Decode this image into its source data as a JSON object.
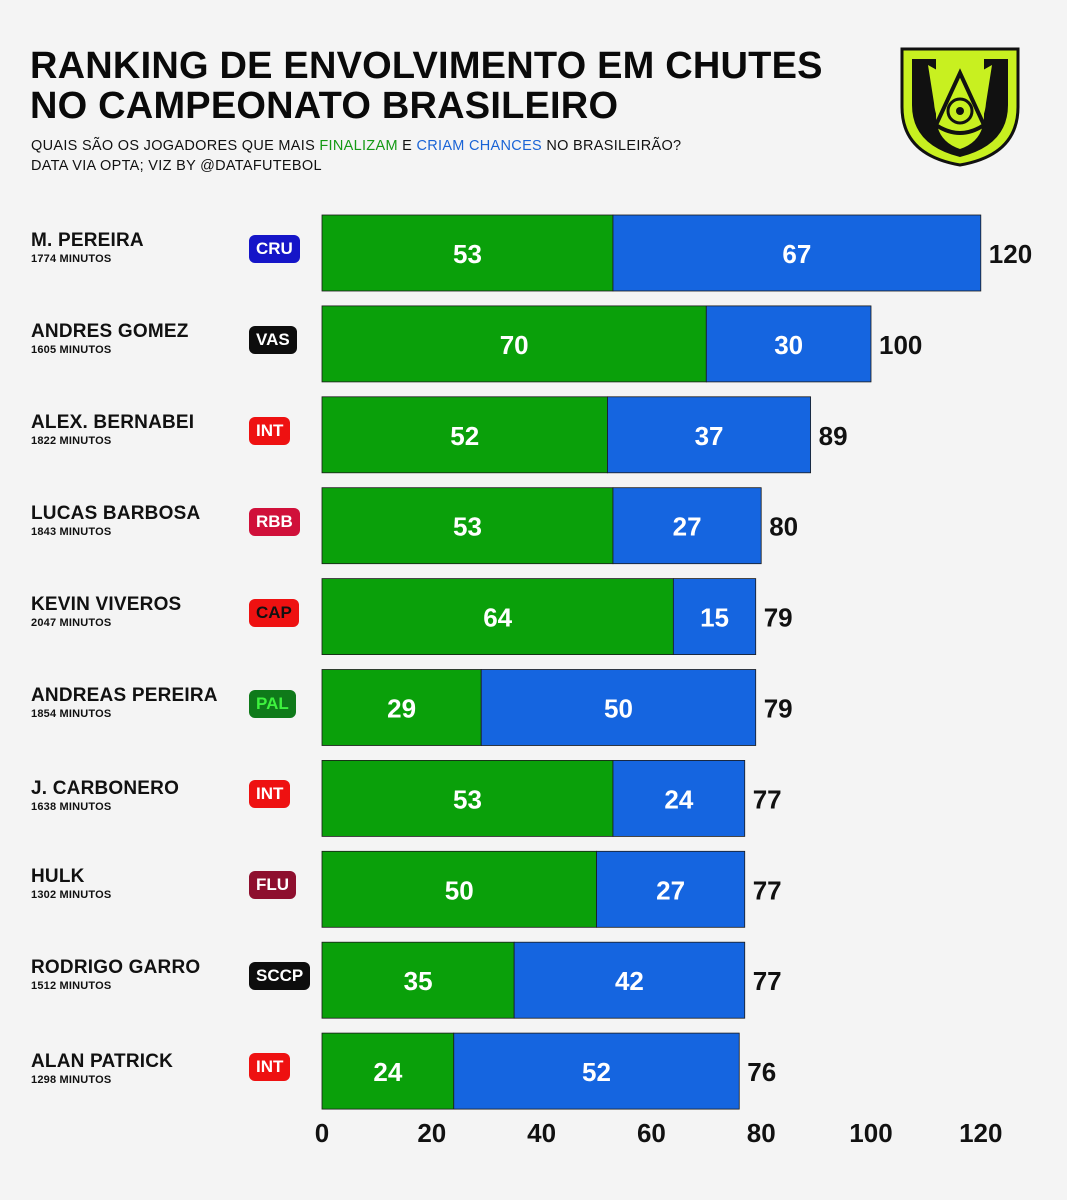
{
  "header": {
    "title_line1": "RANKING DE ENVOLVIMENTO EM CHUTES",
    "title_line2": "NO CAMPEONATO BRASILEIRO",
    "subtitle_prefix": "QUAIS SÃO OS JOGADORES QUE MAIS ",
    "subtitle_green": "FINALIZAM",
    "subtitle_mid": " E ",
    "subtitle_blue": "CRIAM CHANCES",
    "subtitle_suffix": " NO BRASILEIRÃO?",
    "credit": "DATA VIA OPTA; VIZ BY @DATAFUTEBOL"
  },
  "colors": {
    "shots": "#0aa00a",
    "chances": "#1565e0",
    "logo_lime": "#c8f020",
    "logo_dark": "#111111"
  },
  "logo": {
    "icon": "brasileirao-logo-icon"
  },
  "players": [
    {
      "name": "M. PEREIRA",
      "minutes": "1774 MINUTOS",
      "team": "CRU",
      "team_color": "#1515c8",
      "team_text": "#ffffff"
    },
    {
      "name": "ANDRES GOMEZ",
      "minutes": "1605 MINUTOS",
      "team": "VAS",
      "team_color": "#0d0d0d",
      "team_text": "#ffffff"
    },
    {
      "name": "ALEX. BERNABEI",
      "minutes": "1822 MINUTOS",
      "team": "INT",
      "team_color": "#ee1111",
      "team_text": "#ffffff"
    },
    {
      "name": "LUCAS BARBOSA",
      "minutes": "1843 MINUTOS",
      "team": "RBB",
      "team_color": "#d0103a",
      "team_text": "#ffffff"
    },
    {
      "name": "KEVIN VIVEROS",
      "minutes": "2047 MINUTOS",
      "team": "CAP",
      "team_color": "#ee1111",
      "team_text": "#111111"
    },
    {
      "name": "ANDREAS PEREIRA",
      "minutes": "1854 MINUTOS",
      "team": "PAL",
      "team_color": "#0f7a1a",
      "team_text": "#3ef23e"
    },
    {
      "name": "J. CARBONERO",
      "minutes": "1638 MINUTOS",
      "team": "INT",
      "team_color": "#ee1111",
      "team_text": "#ffffff"
    },
    {
      "name": "HULK",
      "minutes": "1302 MINUTOS",
      "team": "FLU",
      "team_color": "#8e0f2e",
      "team_text": "#ffffff"
    },
    {
      "name": "RODRIGO GARRO",
      "minutes": "1512 MINUTOS",
      "team": "SCCP",
      "team_color": "#0d0d0d",
      "team_text": "#ffffff"
    },
    {
      "name": "ALAN PATRICK",
      "minutes": "1298 MINUTOS",
      "team": "INT",
      "team_color": "#ee1111",
      "team_text": "#ffffff"
    }
  ],
  "chart_data": {
    "type": "bar",
    "orientation": "horizontal",
    "stacked": true,
    "categories": [
      "M. PEREIRA",
      "ANDRES GOMEZ",
      "ALEX. BERNABEI",
      "LUCAS BARBOSA",
      "KEVIN VIVEROS",
      "ANDREAS PEREIRA",
      "J. CARBONERO",
      "HULK",
      "RODRIGO GARRO",
      "ALAN PATRICK"
    ],
    "series": [
      {
        "values": [
          53,
          70,
          52,
          53,
          64,
          29,
          53,
          50,
          35,
          24
        ]
      },
      {
        "values": [
          67,
          30,
          37,
          27,
          15,
          50,
          24,
          27,
          42,
          52
        ]
      }
    ],
    "totals": [
      120,
      100,
      89,
      80,
      79,
      79,
      77,
      77,
      77,
      76
    ],
    "xlim": [
      0,
      120
    ],
    "xticks": [
      0,
      20,
      40,
      60,
      80,
      100,
      120
    ],
    "grid": false
  }
}
